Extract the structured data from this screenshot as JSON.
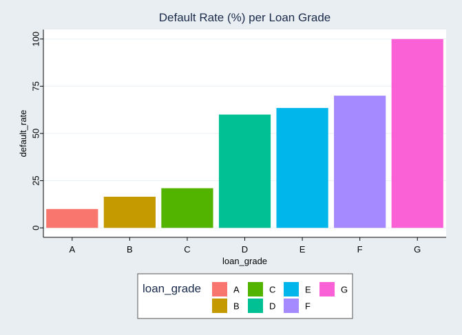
{
  "chart_data": {
    "type": "bar",
    "title": "Default Rate (%) per Loan Grade",
    "xlabel": "loan_grade",
    "ylabel": "default_rate",
    "categories": [
      "A",
      "B",
      "C",
      "D",
      "E",
      "F",
      "G"
    ],
    "values": [
      10,
      16.5,
      21,
      60,
      63.5,
      70,
      100
    ],
    "colors": [
      "#f8766d",
      "#c49a00",
      "#53b400",
      "#00c094",
      "#00b6eb",
      "#a58aff",
      "#fb61d7"
    ],
    "ylim": [
      -5,
      105
    ],
    "yticks": [
      0,
      25,
      50,
      75,
      100
    ],
    "grid": true,
    "legend": {
      "title": "loan_grade",
      "position": "bottom"
    }
  }
}
